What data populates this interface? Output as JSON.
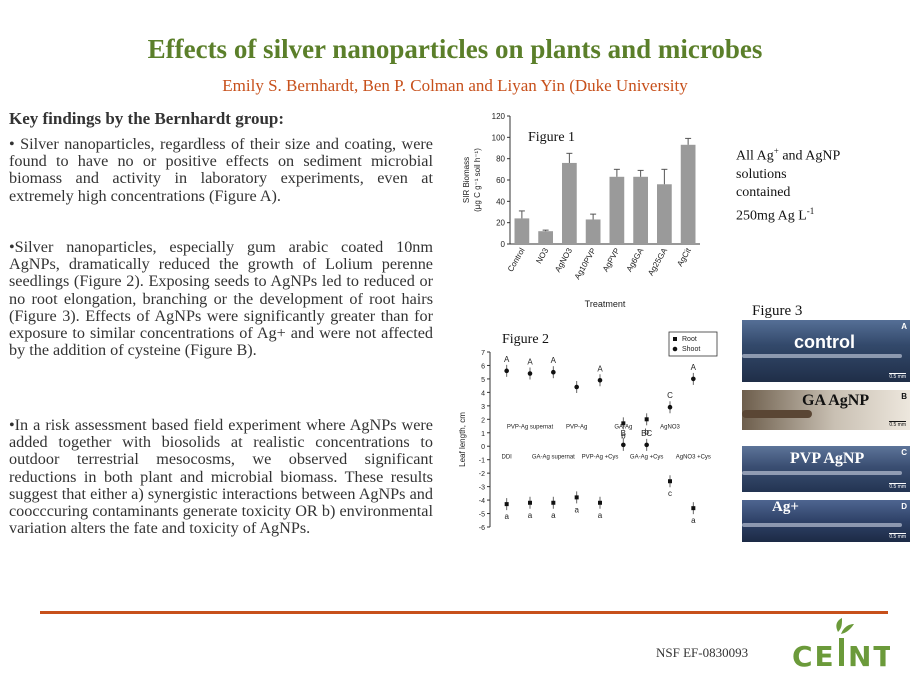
{
  "title": "Effects of silver nanoparticles on plants and microbes",
  "authors": "Emily S. Bernhardt, Ben P. Colman and Liyan Yin (Duke University",
  "findings": {
    "heading": "Key findings by the Bernhardt group:",
    "paragraphs": [
      "•  Silver nanoparticles, regardless of their size and coating, were found to have no or positive effects on sediment microbial biomass and activity in laboratory experiments, even at extremely high concentrations (Figure A).",
      "•Silver nanoparticles, especially gum arabic coated 10nm AgNPs, dramatically reduced the growth of Lolium perenne seedlings (Figure 2).   Exposing seeds to AgNPs led to reduced or no root elongation, branching or the development of root hairs (Figure 3). Effects of AgNPs were significantly greater than for exposure to similar concentrations of Ag+   and were not affected by the addition of cysteine (Figure B).",
      "•In a risk assessment based field experiment where AgNPs were added together with biosolids at realistic concentrations to outdoor terrestrial mesocosms, we observed significant reductions in both plant and microbial biomass.  These results suggest that either a) synergistic interactions between AgNPs and coocccuring contaminants generate toxicity OR b) environmental variation alters the fate and toxicity of AgNPs."
    ]
  },
  "note": {
    "line1_prefix": "All Ag",
    "line1_sup": "+",
    "line1_suffix": " and AgNP",
    "line2": "solutions",
    "line3": "contained",
    "line4_prefix": "250mg Ag L",
    "line4_sup": "-1"
  },
  "chart_data": [
    {
      "type": "bar",
      "title": "Figure 1",
      "categories": [
        "Control",
        "NO3",
        "AgNO3",
        "Ag10PVP",
        "AgPVP",
        "Ag6GA",
        "Ag25GA",
        "AgCit"
      ],
      "values": [
        24,
        12,
        76,
        23,
        63,
        63,
        56,
        93
      ],
      "errors": [
        7,
        1,
        9,
        5,
        7,
        6,
        14,
        6
      ],
      "xlabel": "Treatment",
      "ylabel_line1": "SIR Biomass",
      "ylabel_line2": "(µg C g⁻¹ soil h⁻¹)",
      "ylim": [
        0,
        120
      ],
      "yticks": [
        "0",
        "20",
        "40",
        "60",
        "80",
        "100",
        "120"
      ],
      "color": "#9a9a9a"
    },
    {
      "type": "scatter",
      "title": "Figure 2",
      "ylabel": "Leaf length, cm",
      "ylim": [
        -6,
        7
      ],
      "yticks": [
        "-6",
        "-5",
        "-4",
        "-3",
        "-2",
        "-1",
        "0",
        "1",
        "2",
        "3",
        "4",
        "5",
        "6",
        "7"
      ],
      "groups": [
        "DDI",
        "PVP-Ag supernat",
        "GA-Ag supernat",
        "PVP-Ag",
        "PVP-Ag +Cys",
        "GA-Ag",
        "GA-Ag +Cys",
        "AgNO3",
        "AgNO3 +Cys"
      ],
      "series": [
        {
          "name": "Shoot",
          "values": [
            5.6,
            5.4,
            5.5,
            4.4,
            4.9,
            0.1,
            0.1,
            2.9,
            5.0
          ],
          "letters": [
            "A",
            "A",
            "A",
            "",
            "A",
            "B",
            "BC",
            "C",
            "A"
          ]
        },
        {
          "name": "Root",
          "values": [
            -4.3,
            -4.2,
            -4.2,
            -3.8,
            -4.2,
            1.7,
            2.0,
            -2.6,
            -4.6
          ],
          "letters": [
            "a",
            "a",
            "a",
            "a",
            "a",
            "b",
            "b",
            "c",
            "a"
          ]
        }
      ],
      "legend_position": "top-right"
    }
  ],
  "figure3": {
    "title": "Figure 3",
    "panels": [
      {
        "label": "control",
        "letter": "A",
        "scale": "0.5 mm"
      },
      {
        "label": "GA AgNP",
        "letter": "B",
        "scale": "0.5 mm"
      },
      {
        "label": "PVP AgNP",
        "letter": "C",
        "scale": "0.5 mm"
      },
      {
        "label": "Ag+",
        "letter": "D",
        "scale": "0.5 mm"
      }
    ]
  },
  "footer": {
    "grant": "NSF EF-0830093",
    "logo_text": "CEINT"
  },
  "colors": {
    "title": "#5b7f2a",
    "accent": "#c7501b"
  }
}
